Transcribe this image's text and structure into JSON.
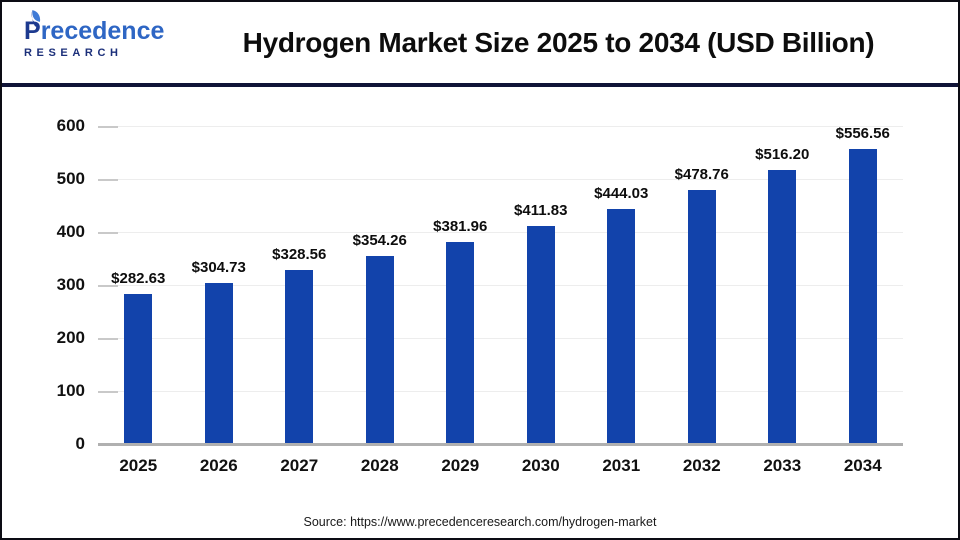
{
  "header": {
    "logo": {
      "brand": "Precedence",
      "subtext": "RESEARCH"
    },
    "title": "Hydrogen Market Size 2025 to 2034 (USD Billion)"
  },
  "chart_data": {
    "type": "bar",
    "title": "Hydrogen Market Size 2025 to 2034 (USD Billion)",
    "categories": [
      "2025",
      "2026",
      "2027",
      "2028",
      "2029",
      "2030",
      "2031",
      "2032",
      "2033",
      "2034"
    ],
    "values": [
      282.63,
      304.73,
      328.56,
      354.26,
      381.96,
      411.83,
      444.03,
      478.76,
      516.2,
      556.56
    ],
    "value_labels": [
      "$282.63",
      "$304.73",
      "$328.56",
      "$354.26",
      "$381.96",
      "$411.83",
      "$444.03",
      "$478.76",
      "$516.20",
      "$556.56"
    ],
    "xlabel": "",
    "ylabel": "",
    "ylim": [
      0,
      600
    ],
    "yticks": [
      0,
      100,
      200,
      300,
      400,
      500,
      600
    ],
    "grid": "horizontal",
    "legend": "none",
    "bar_color": "#1243ab"
  },
  "footer": {
    "source": "Source: https://www.precedenceresearch.com/hydrogen-market"
  },
  "colors": {
    "bar": "#1243ab",
    "divider": "#101437",
    "frame_border": "#0c0c14",
    "brand_blue": "#2e66c4",
    "brand_navy": "#1b2f7a",
    "grid_line": "#ededed",
    "axis_line": "#b0b0b0",
    "label_text": "#0d0d0d"
  }
}
